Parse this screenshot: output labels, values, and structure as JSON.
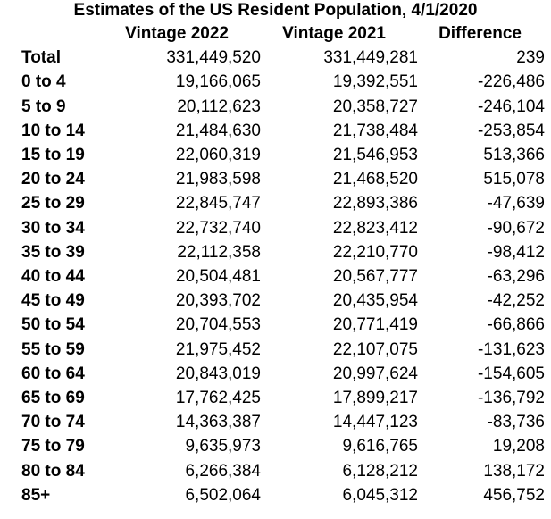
{
  "title": "Estimates of the US Resident Population, 4/1/2020",
  "columns": [
    "Vintage 2022",
    "Vintage 2021",
    "Difference"
  ],
  "rows": [
    {
      "label": "Total",
      "v2022": "331,449,520",
      "v2021": "331,449,281",
      "diff": "239"
    },
    {
      "label": "0 to 4",
      "v2022": "19,166,065",
      "v2021": "19,392,551",
      "diff": "-226,486"
    },
    {
      "label": "5 to 9",
      "v2022": "20,112,623",
      "v2021": "20,358,727",
      "diff": "-246,104"
    },
    {
      "label": "10 to 14",
      "v2022": "21,484,630",
      "v2021": "21,738,484",
      "diff": "-253,854"
    },
    {
      "label": "15 to 19",
      "v2022": "22,060,319",
      "v2021": "21,546,953",
      "diff": "513,366"
    },
    {
      "label": "20 to 24",
      "v2022": "21,983,598",
      "v2021": "21,468,520",
      "diff": "515,078"
    },
    {
      "label": "25 to 29",
      "v2022": "22,845,747",
      "v2021": "22,893,386",
      "diff": "-47,639"
    },
    {
      "label": "30 to 34",
      "v2022": "22,732,740",
      "v2021": "22,823,412",
      "diff": "-90,672"
    },
    {
      "label": "35 to 39",
      "v2022": "22,112,358",
      "v2021": "22,210,770",
      "diff": "-98,412"
    },
    {
      "label": "40 to 44",
      "v2022": "20,504,481",
      "v2021": "20,567,777",
      "diff": "-63,296"
    },
    {
      "label": "45 to 49",
      "v2022": "20,393,702",
      "v2021": "20,435,954",
      "diff": "-42,252"
    },
    {
      "label": "50 to 54",
      "v2022": "20,704,553",
      "v2021": "20,771,419",
      "diff": "-66,866"
    },
    {
      "label": "55 to 59",
      "v2022": "21,975,452",
      "v2021": "22,107,075",
      "diff": "-131,623"
    },
    {
      "label": "60 to 64",
      "v2022": "20,843,019",
      "v2021": "20,997,624",
      "diff": "-154,605"
    },
    {
      "label": "65 to 69",
      "v2022": "17,762,425",
      "v2021": "17,899,217",
      "diff": "-136,792"
    },
    {
      "label": "70 to 74",
      "v2022": "14,363,387",
      "v2021": "14,447,123",
      "diff": "-83,736"
    },
    {
      "label": "75 to 79",
      "v2022": "9,635,973",
      "v2021": "9,616,765",
      "diff": "19,208"
    },
    {
      "label": "80 to 84",
      "v2022": "6,266,384",
      "v2021": "6,128,212",
      "diff": "138,172"
    },
    {
      "label": "85+",
      "v2022": "6,502,064",
      "v2021": "6,045,312",
      "diff": "456,752"
    }
  ]
}
